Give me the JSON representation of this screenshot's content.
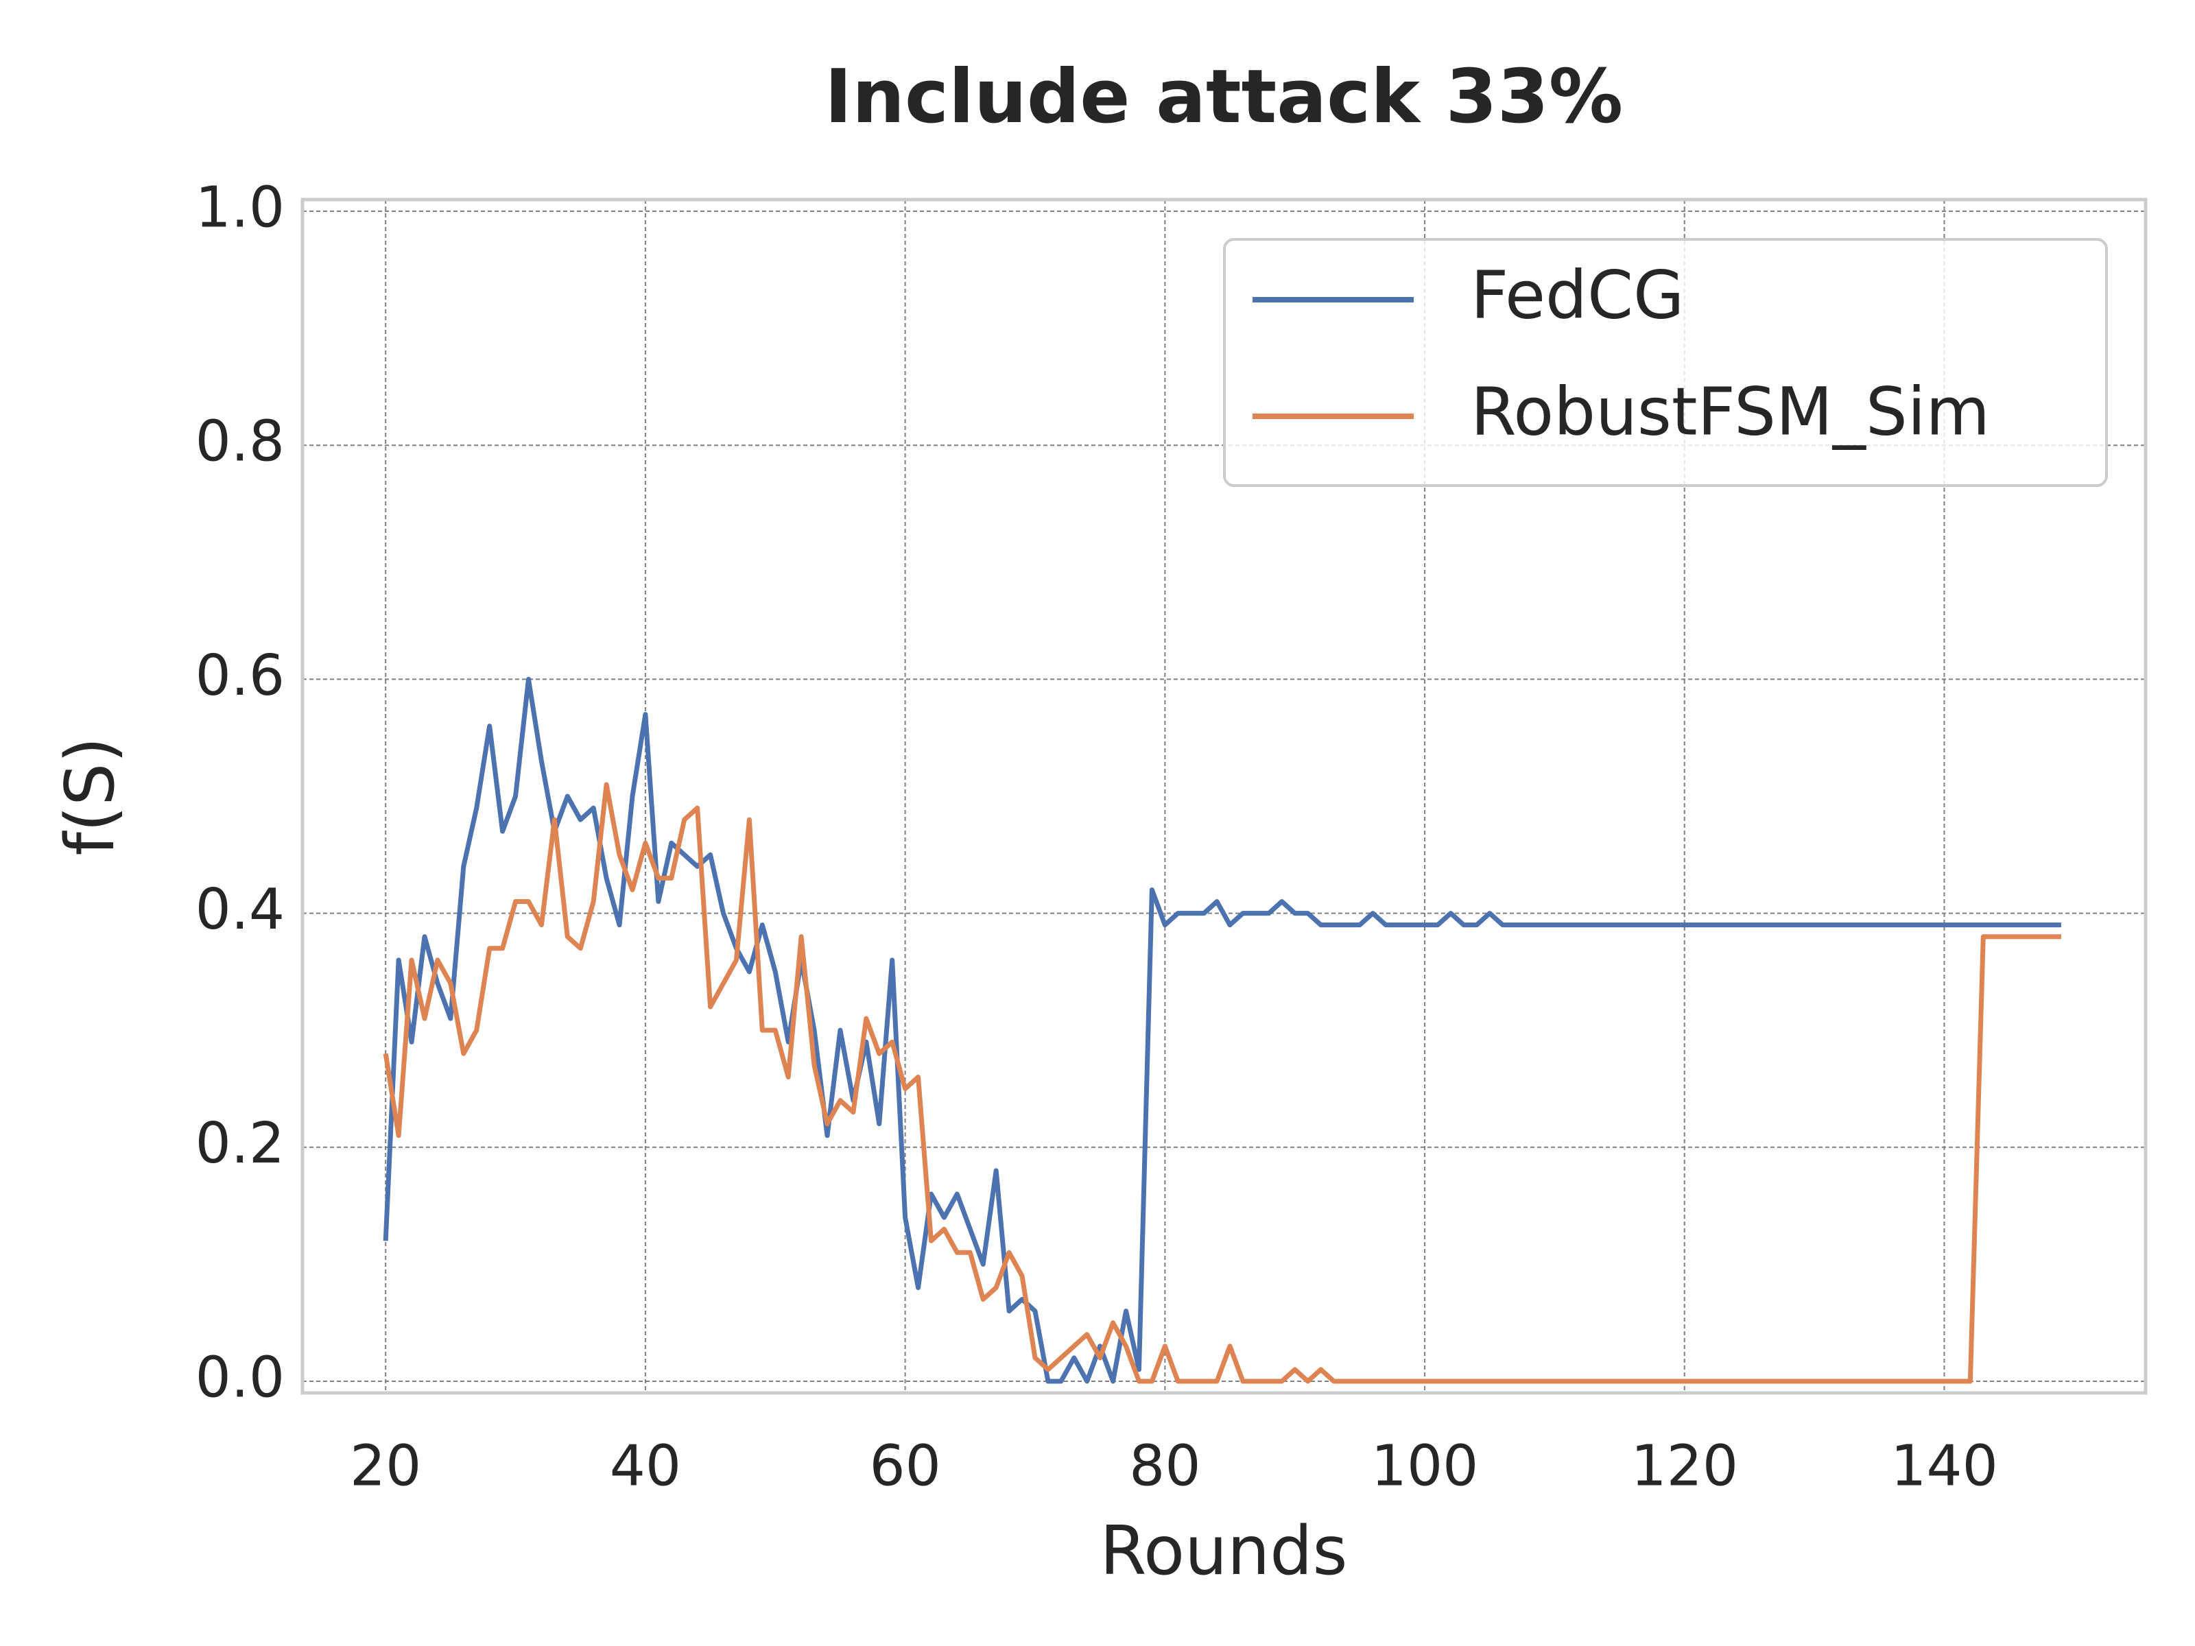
{
  "chart_data": {
    "type": "line",
    "title": "Include attack 33%",
    "xlabel": "Rounds",
    "ylabel": "f(S)",
    "x": [
      20,
      21,
      22,
      23,
      24,
      25,
      26,
      27,
      28,
      29,
      30,
      31,
      32,
      33,
      34,
      35,
      36,
      37,
      38,
      39,
      40,
      41,
      42,
      43,
      44,
      45,
      46,
      47,
      48,
      49,
      50,
      51,
      52,
      53,
      54,
      55,
      56,
      57,
      58,
      59,
      60,
      61,
      62,
      63,
      64,
      65,
      66,
      67,
      68,
      69,
      70,
      71,
      72,
      73,
      74,
      75,
      76,
      77,
      78,
      79,
      80,
      81,
      82,
      83,
      84,
      85,
      86,
      87,
      88,
      89,
      90,
      91,
      92,
      93,
      94,
      95,
      96,
      97,
      98,
      99,
      100,
      101,
      102,
      103,
      104,
      105,
      106,
      107,
      108,
      109,
      110,
      111,
      112,
      113,
      114,
      115,
      116,
      117,
      118,
      119,
      120,
      121,
      122,
      123,
      124,
      125,
      126,
      127,
      128,
      129,
      130,
      131,
      132,
      133,
      134,
      135,
      136,
      137,
      138,
      139,
      140,
      141,
      142,
      143,
      144,
      145,
      146,
      147,
      148,
      149
    ],
    "series": [
      {
        "name": "FedCG",
        "color": "#4c72b0",
        "values": [
          0.12,
          0.36,
          0.29,
          0.38,
          0.34,
          0.31,
          0.44,
          0.49,
          0.56,
          0.47,
          0.5,
          0.6,
          0.53,
          0.47,
          0.5,
          0.48,
          0.49,
          0.43,
          0.39,
          0.5,
          0.57,
          0.41,
          0.46,
          0.45,
          0.44,
          0.45,
          0.4,
          0.37,
          0.35,
          0.39,
          0.35,
          0.29,
          0.36,
          0.3,
          0.21,
          0.3,
          0.24,
          0.29,
          0.22,
          0.36,
          0.14,
          0.08,
          0.16,
          0.14,
          0.16,
          0.13,
          0.1,
          0.18,
          0.06,
          0.07,
          0.06,
          0,
          0,
          0.02,
          0,
          0.03,
          0,
          0.06,
          0.01,
          0.42,
          0.39,
          0.4,
          0.4,
          0.4,
          0.41,
          0.39,
          0.4,
          0.4,
          0.4,
          0.41,
          0.4,
          0.4,
          0.39,
          0.39,
          0.39,
          0.39,
          0.4,
          0.39,
          0.39,
          0.39,
          0.39,
          0.39,
          0.4,
          0.39,
          0.39,
          0.4,
          0.39,
          0.39,
          0.39,
          0.39,
          0.39,
          0.39,
          0.39,
          0.39,
          0.39,
          0.39,
          0.39,
          0.39,
          0.39,
          0.39,
          0.39,
          0.39,
          0.39,
          0.39,
          0.39,
          0.39,
          0.39,
          0.39,
          0.39,
          0.39,
          0.39,
          0.39,
          0.39,
          0.39,
          0.39,
          0.39,
          0.39,
          0.39,
          0.39,
          0.39,
          0.39,
          0.39,
          0.39,
          0.39,
          0.39,
          0.39,
          0.39,
          0.39,
          0.39,
          0.39
        ]
      },
      {
        "name": "RobustFSM_Sim",
        "color": "#dd8452",
        "values": [
          0.28,
          0.21,
          0.36,
          0.31,
          0.36,
          0.34,
          0.28,
          0.3,
          0.37,
          0.37,
          0.41,
          0.41,
          0.39,
          0.48,
          0.38,
          0.37,
          0.41,
          0.51,
          0.45,
          0.42,
          0.46,
          0.43,
          0.43,
          0.48,
          0.49,
          0.32,
          0.34,
          0.36,
          0.48,
          0.3,
          0.3,
          0.26,
          0.38,
          0.27,
          0.22,
          0.24,
          0.23,
          0.31,
          0.28,
          0.29,
          0.25,
          0.26,
          0.12,
          0.13,
          0.11,
          0.11,
          0.07,
          0.08,
          0.11,
          0.09,
          0.02,
          0.01,
          0.02,
          0.03,
          0.04,
          0.02,
          0.05,
          0.03,
          0,
          0,
          0.03,
          0,
          0,
          0,
          0,
          0.03,
          0,
          0,
          0,
          0,
          0.01,
          0,
          0.01,
          0,
          0,
          0,
          0,
          0,
          0,
          0,
          0,
          0,
          0,
          0,
          0,
          0,
          0,
          0,
          0,
          0,
          0,
          0,
          0,
          0,
          0,
          0,
          0,
          0,
          0,
          0,
          0,
          0,
          0,
          0,
          0,
          0,
          0,
          0,
          0,
          0,
          0,
          0,
          0,
          0,
          0,
          0,
          0,
          0,
          0,
          0,
          0,
          0,
          0,
          0.38,
          0.38,
          0.38,
          0.38,
          0.38,
          0.38,
          0.38
        ]
      }
    ],
    "xlim": [
      13.6,
      155.5
    ],
    "ylim": [
      -0.01,
      1.01
    ],
    "xticks": [
      20,
      40,
      60,
      80,
      100,
      120,
      140
    ],
    "yticks": [
      {
        "value": 0,
        "label": "0.0"
      },
      0.2,
      0.4,
      0.6,
      0.8,
      {
        "value": 1,
        "label": "1.0"
      }
    ],
    "grid": true,
    "legend": "upper right"
  }
}
